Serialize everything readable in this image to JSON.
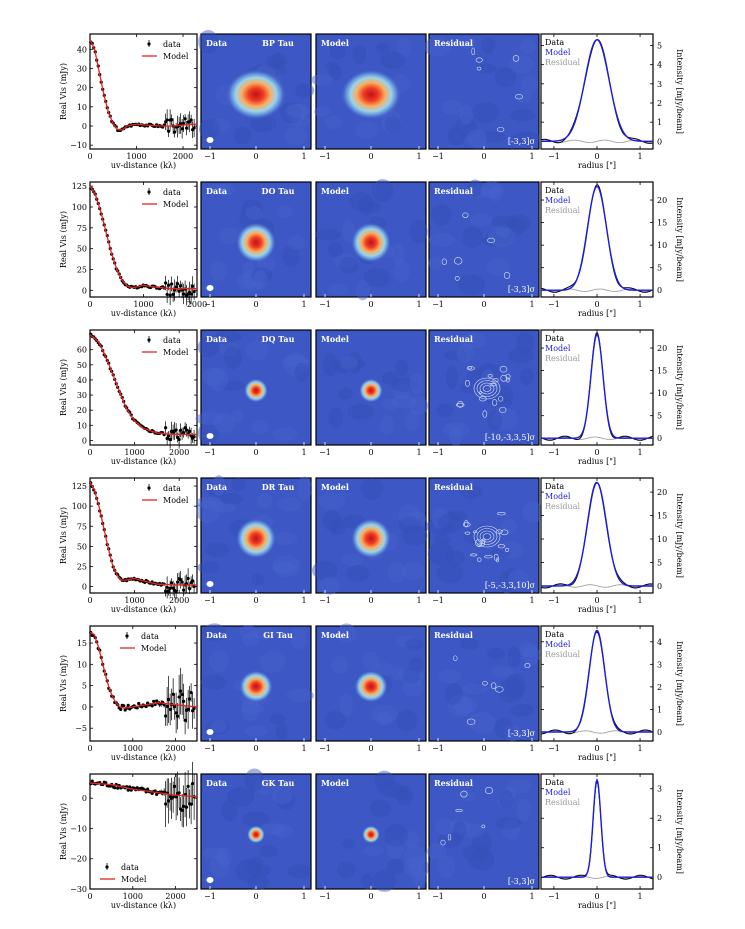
{
  "figure": {
    "panel_titles": {
      "data": "Data",
      "model": "Model",
      "residual": "Residual"
    },
    "vis_xlabel": "uv-distance (kλ)",
    "vis_ylabel": "Real Vis (mJy)",
    "profile_xlabel": "radius [\"]",
    "profile_ylabel": "Intensity [mJy/beam]",
    "legend_vis": {
      "data": "data",
      "model": "Model"
    },
    "legend_profile": {
      "data": "Data",
      "model": "Model",
      "residual": "Residual"
    },
    "colors": {
      "model_line": "#e8231f",
      "data_points": "#000000",
      "map_bg": "#3d57c4",
      "profile_data": "#000000",
      "profile_model": "#1a1ae6",
      "profile_residual": "#999999",
      "contour": "#dde3f5"
    },
    "image_xticks": [
      "−1",
      "0",
      "1"
    ],
    "profile_xticks": [
      "−1",
      "0",
      "1"
    ]
  },
  "chart_data": [
    {
      "type": "line",
      "source": "BP Tau",
      "title": "BP Tau",
      "contour_levels": "[-3,3]σ",
      "vis": {
        "xlim": [
          0,
          2300
        ],
        "ylim": [
          -12,
          48
        ],
        "xticks": [
          0,
          1000,
          2000
        ],
        "yticks": [
          -10,
          0,
          10,
          20,
          30,
          40
        ],
        "model": {
          "x": [
            0,
            100,
            200,
            300,
            400,
            500,
            600,
            700,
            800,
            1000,
            1200,
            1500,
            1800,
            2000,
            2300
          ],
          "y": [
            45,
            40,
            28,
            16,
            7,
            1,
            -2,
            -2,
            0,
            1,
            0.5,
            0,
            0,
            0.5,
            1
          ]
        },
        "legend": "upper right"
      },
      "profile": {
        "peak": 5.3,
        "ylim": [
          -0.4,
          5.6
        ],
        "yticks": [
          0,
          1,
          2,
          3,
          4,
          5
        ],
        "width": 0.28
      },
      "map": {
        "size": 1.25,
        "aspect": 1.2
      }
    },
    {
      "type": "line",
      "source": "DO Tau",
      "title": "DO Tau",
      "contour_levels": "[-3,3]σ",
      "vis": {
        "xlim": [
          0,
          2000
        ],
        "ylim": [
          -8,
          130
        ],
        "xticks": [
          0,
          1000,
          2000
        ],
        "yticks": [
          0,
          25,
          50,
          75,
          100,
          125
        ],
        "model": {
          "x": [
            0,
            100,
            200,
            300,
            400,
            500,
            600,
            700,
            800,
            1000,
            1200,
            1500,
            1800,
            2000
          ],
          "y": [
            125,
            115,
            95,
            70,
            45,
            25,
            12,
            5,
            3,
            6,
            4,
            2,
            2,
            2
          ]
        },
        "legend": "upper right"
      },
      "profile": {
        "peak": 23,
        "ylim": [
          -1.5,
          24
        ],
        "yticks": [
          0,
          5,
          10,
          15,
          20
        ],
        "width": 0.22
      },
      "map": {
        "size": 1.0,
        "aspect": 1.0
      }
    },
    {
      "type": "line",
      "source": "DQ Tau",
      "title": "DQ Tau",
      "contour_levels": "[-10,-3,3,5]σ",
      "vis": {
        "xlim": [
          0,
          2400
        ],
        "ylim": [
          -3,
          73
        ],
        "xticks": [
          0,
          1000,
          2000
        ],
        "yticks": [
          0,
          10,
          20,
          30,
          40,
          50,
          60
        ],
        "model": {
          "x": [
            0,
            200,
            400,
            600,
            800,
            1000,
            1200,
            1500,
            1800,
            2100,
            2400
          ],
          "y": [
            70,
            65,
            52,
            37,
            22,
            13,
            8,
            5,
            4,
            4,
            4
          ]
        },
        "legend": "upper right"
      },
      "profile": {
        "peak": 23,
        "ylim": [
          -1.5,
          24
        ],
        "yticks": [
          0,
          5,
          10,
          15,
          20
        ],
        "width": 0.14
      },
      "map": {
        "size": 0.6,
        "aspect": 1.0
      }
    },
    {
      "type": "line",
      "source": "DR Tau",
      "title": "DR Tau",
      "contour_levels": "[-5,-3,3,10]σ",
      "vis": {
        "xlim": [
          0,
          2400
        ],
        "ylim": [
          -8,
          135
        ],
        "xticks": [
          0,
          1000,
          2000
        ],
        "yticks": [
          0,
          25,
          50,
          75,
          100,
          125
        ],
        "model": {
          "x": [
            0,
            100,
            200,
            300,
            400,
            500,
            600,
            700,
            800,
            1000,
            1200,
            1500,
            2000,
            2400
          ],
          "y": [
            130,
            120,
            100,
            75,
            50,
            28,
            15,
            8,
            8,
            10,
            7,
            3,
            2,
            2
          ]
        },
        "legend": "upper right"
      },
      "profile": {
        "peak": 22,
        "ylim": [
          -1.5,
          23
        ],
        "yticks": [
          0,
          5,
          10,
          15,
          20
        ],
        "width": 0.22
      },
      "map": {
        "size": 1.0,
        "aspect": 1.0
      }
    },
    {
      "type": "line",
      "source": "GI Tau",
      "title": "GI Tau",
      "contour_levels": "[-3,3]σ",
      "vis": {
        "xlim": [
          0,
          2500
        ],
        "ylim": [
          -8,
          19
        ],
        "xticks": [
          0,
          1000,
          2000
        ],
        "yticks": [
          -5,
          0,
          5,
          10,
          15
        ],
        "model": {
          "x": [
            0,
            100,
            200,
            300,
            400,
            500,
            600,
            700,
            800,
            1000,
            1300,
            1600,
            2000,
            2500
          ],
          "y": [
            17.5,
            17,
            14,
            10,
            6,
            3,
            1,
            0,
            -0.3,
            0,
            0.5,
            1,
            0.5,
            0
          ]
        },
        "legend": "upper center"
      },
      "profile": {
        "peak": 4.5,
        "ylim": [
          -0.4,
          4.7
        ],
        "yticks": [
          0,
          1,
          2,
          3,
          4
        ],
        "width": 0.18
      },
      "map": {
        "size": 0.8,
        "aspect": 1.05
      }
    },
    {
      "type": "line",
      "source": "GK Tau",
      "title": "GK Tau",
      "contour_levels": "[-3,3]σ",
      "vis": {
        "xlim": [
          0,
          2500
        ],
        "ylim": [
          -30,
          8
        ],
        "xticks": [
          0,
          1000,
          2000
        ],
        "yticks": [
          -30,
          -20,
          -10,
          0
        ],
        "model": {
          "x": [
            0,
            500,
            1000,
            1500,
            2000,
            2500
          ],
          "y": [
            5,
            4.5,
            3,
            2,
            1,
            0.5
          ]
        },
        "legend": "lower left"
      },
      "profile": {
        "peak": 3.3,
        "ylim": [
          -0.4,
          3.5
        ],
        "yticks": [
          0,
          1,
          2,
          3
        ],
        "width": 0.09
      },
      "map": {
        "size": 0.45,
        "aspect": 1.0
      }
    }
  ]
}
